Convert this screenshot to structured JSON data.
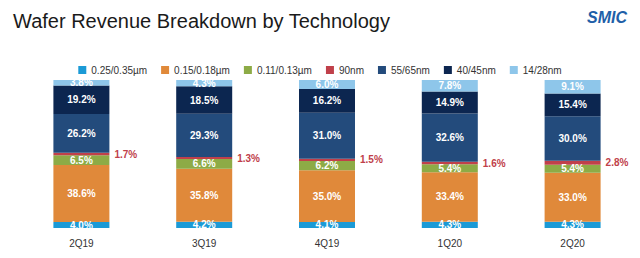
{
  "chart_data": {
    "type": "bar",
    "title": "Wafer Revenue Breakdown by Technology",
    "annotations": [
      "SMIC"
    ],
    "categories": [
      "2Q19",
      "3Q19",
      "4Q19",
      "1Q20",
      "2Q20"
    ],
    "stacked": true,
    "data_labels": true,
    "legend": "top",
    "grid": false,
    "tick_labels": "x",
    "ylim": [
      0,
      100
    ],
    "series": [
      {
        "name": "0.25/0.35µm",
        "color": "#1b9ad6",
        "values": [
          4.0,
          4.2,
          4.1,
          4.3,
          4.3
        ],
        "value_labels": [
          "4.0%",
          "4.2%",
          "4.1%",
          "4.3%",
          "4.3%"
        ]
      },
      {
        "name": "0.15/0.18µm",
        "color": "#e0893a",
        "values": [
          38.6,
          35.8,
          35.0,
          33.4,
          33.0
        ],
        "value_labels": [
          "38.6%",
          "35.8%",
          "35.0%",
          "33.4%",
          "33.0%"
        ]
      },
      {
        "name": "0.11/0.13µm",
        "color": "#8dab46",
        "values": [
          6.5,
          6.6,
          6.2,
          5.4,
          5.4
        ],
        "value_labels": [
          "6.5%",
          "6.6%",
          "6.2%",
          "5.4%",
          "5.4%"
        ]
      },
      {
        "name": "90nm",
        "color": "#c0404a",
        "values": [
          1.7,
          1.3,
          1.5,
          1.6,
          2.8
        ],
        "value_labels": [
          "1.7%",
          "1.3%",
          "1.5%",
          "1.6%",
          "2.8%"
        ]
      },
      {
        "name": "55/65nm",
        "color": "#234b7c",
        "values": [
          26.2,
          29.3,
          31.0,
          32.6,
          30.0
        ],
        "value_labels": [
          "26.2%",
          "29.3%",
          "31.0%",
          "32.6%",
          "30.0%"
        ]
      },
      {
        "name": "40/45nm",
        "color": "#0c2650",
        "values": [
          19.2,
          18.5,
          16.2,
          14.9,
          15.4
        ],
        "value_labels": [
          "19.2%",
          "18.5%",
          "16.2%",
          "14.9%",
          "15.4%"
        ]
      },
      {
        "name": "14/28nm",
        "color": "#8ec6ea",
        "values": [
          3.8,
          4.3,
          6.0,
          7.8,
          9.1
        ],
        "value_labels": [
          "3.8%",
          "4.3%",
          "6.0%",
          "7.8%",
          "9.1%"
        ]
      }
    ]
  }
}
